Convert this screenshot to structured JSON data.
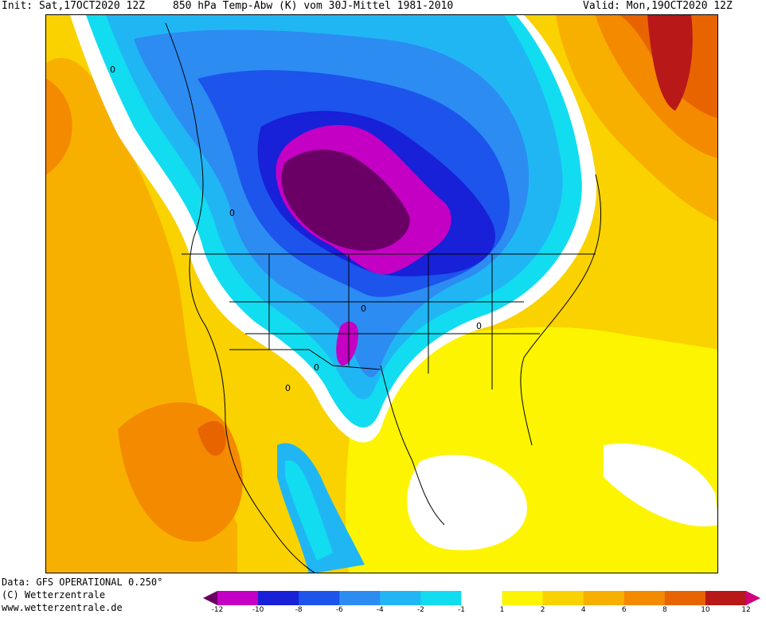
{
  "header": {
    "init": "Init: Sat,17OCT2020 12Z",
    "title": "850 hPa Temp-Abw (K) vom 30J-Mittel 1981-2010",
    "valid": "Valid: Mon,19OCT2020 12Z"
  },
  "footer": {
    "data_source": "Data: GFS OPERATIONAL 0.250°",
    "copyright": "(C) Wetterzentrale",
    "website": "www.wetterzentrale.de"
  },
  "map": {
    "region": "North America",
    "contour_labels": [
      "0",
      "0",
      "0",
      "0",
      "0",
      "0"
    ]
  },
  "colorbar": {
    "ticks": [
      "-12",
      "-10",
      "-8",
      "-6",
      "-4",
      "-2",
      "-1",
      "1",
      "2",
      "4",
      "6",
      "8",
      "10",
      "12"
    ],
    "bins": [
      {
        "range": "<-12",
        "color": "#6a0066"
      },
      {
        "range": "-12..-10",
        "color": "#c400c4"
      },
      {
        "range": "-10..-8",
        "color": "#1820d8"
      },
      {
        "range": "-8..-6",
        "color": "#1c54ec"
      },
      {
        "range": "-6..-4",
        "color": "#2c8cf2"
      },
      {
        "range": "-4..-2",
        "color": "#20b6f4"
      },
      {
        "range": "-2..-1",
        "color": "#12dcf0"
      },
      {
        "range": "-1..1",
        "color": "#ffffff"
      },
      {
        "range": "1..2",
        "color": "#fcf400"
      },
      {
        "range": "2..4",
        "color": "#f9d200"
      },
      {
        "range": "4..6",
        "color": "#f8b000"
      },
      {
        "range": "6..8",
        "color": "#f48a00"
      },
      {
        "range": "8..10",
        "color": "#e86400"
      },
      {
        "range": "10..12",
        "color": "#b81818"
      },
      {
        "range": ">12",
        "color": "#d0007c"
      }
    ]
  }
}
